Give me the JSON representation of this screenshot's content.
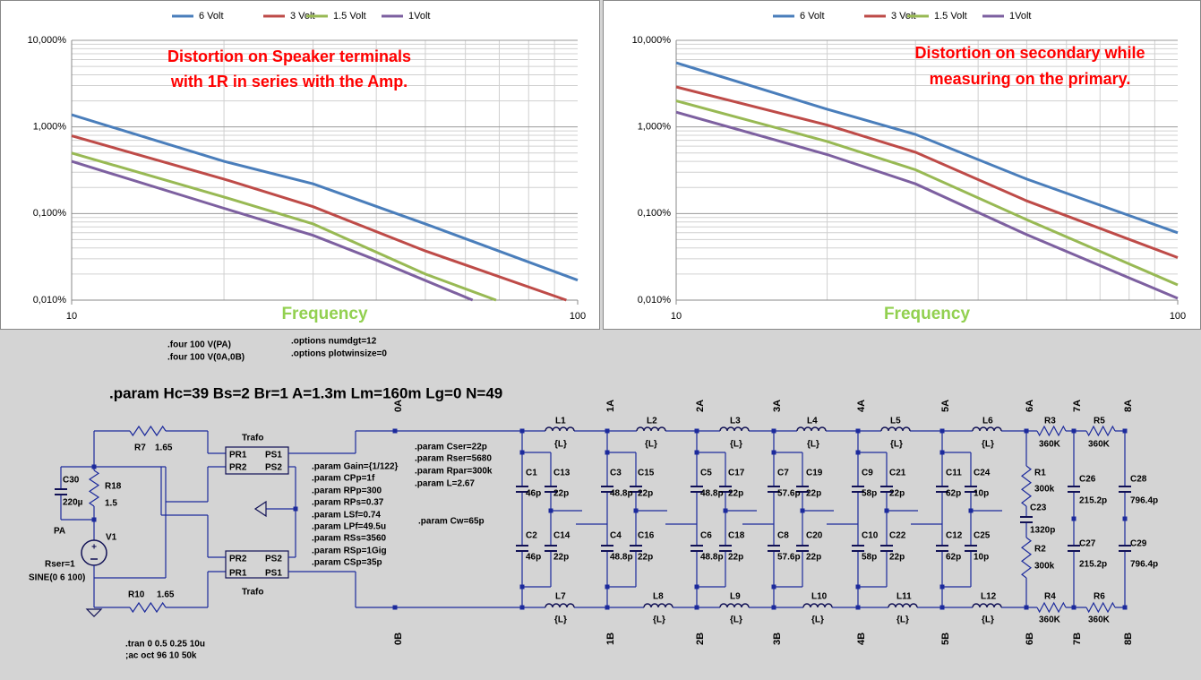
{
  "chart_data": [
    {
      "type": "line",
      "x_log": true,
      "y_log": true,
      "grid": true,
      "minor_grid": true,
      "legend": "top",
      "annotation": [
        "Distortion on Speaker terminals",
        "with 1R in series with the Amp."
      ],
      "xlabel": "Frequency",
      "xlim": [
        10,
        100
      ],
      "xticks": [
        10,
        100
      ],
      "ylim": [
        0.01,
        10
      ],
      "yticks": [
        {
          "value": 0.01,
          "label": "0,010%"
        },
        {
          "value": 0.1,
          "label": "0,100%"
        },
        {
          "value": 1,
          "label": "1,000%"
        },
        {
          "value": 10,
          "label": "10,000%"
        }
      ],
      "series": [
        {
          "name": "6 Volt",
          "color": "#4a7ebb",
          "x": [
            10,
            20,
            30,
            50,
            100
          ],
          "values": [
            1.38,
            0.4,
            0.22,
            0.076,
            0.017
          ]
        },
        {
          "name": "3 Volt",
          "color": "#be4b48",
          "x": [
            10,
            20,
            30,
            50,
            95
          ],
          "values": [
            0.79,
            0.25,
            0.12,
            0.037,
            0.01
          ]
        },
        {
          "name": "1.5 Volt",
          "color": "#98b954",
          "x": [
            10,
            20,
            30,
            50,
            69
          ],
          "values": [
            0.5,
            0.155,
            0.076,
            0.02,
            0.01
          ]
        },
        {
          "name": "1Volt",
          "color": "#7d60a0",
          "x": [
            10,
            20,
            30,
            40,
            62
          ],
          "values": [
            0.4,
            0.115,
            0.056,
            0.029,
            0.01
          ]
        }
      ]
    },
    {
      "type": "line",
      "x_log": true,
      "y_log": true,
      "grid": true,
      "minor_grid": true,
      "legend": "top",
      "annotation": [
        "Distortion on secondary  while",
        "measuring on the primary."
      ],
      "xlabel": "Frequency",
      "xlim": [
        10,
        100
      ],
      "xticks": [
        10,
        100
      ],
      "ylim": [
        0.01,
        10
      ],
      "yticks": [
        {
          "value": 0.01,
          "label": "0,010%"
        },
        {
          "value": 0.1,
          "label": "0,100%"
        },
        {
          "value": 1,
          "label": "1,000%"
        },
        {
          "value": 10,
          "label": "10,000%"
        }
      ],
      "series": [
        {
          "name": "6 Volt",
          "color": "#4a7ebb",
          "x": [
            10,
            20,
            30,
            50,
            100
          ],
          "values": [
            5.5,
            1.6,
            0.82,
            0.25,
            0.06
          ]
        },
        {
          "name": "3 Volt",
          "color": "#be4b48",
          "x": [
            10,
            20,
            30,
            50,
            100
          ],
          "values": [
            2.9,
            1.05,
            0.51,
            0.14,
            0.031
          ]
        },
        {
          "name": "1.5 Volt",
          "color": "#98b954",
          "x": [
            10,
            20,
            30,
            50,
            100
          ],
          "values": [
            2.0,
            0.68,
            0.32,
            0.085,
            0.015
          ]
        },
        {
          "name": "1Volt",
          "color": "#7d60a0",
          "x": [
            10,
            20,
            30,
            50,
            100
          ],
          "values": [
            1.48,
            0.48,
            0.22,
            0.057,
            0.0105
          ]
        }
      ]
    }
  ],
  "schematic": {
    "title": ".param Hc=39 Bs=2 Br=1 A=1.3m Lm=160m Lg=0 N=49",
    "directives": [
      ".four 100 V(PA)",
      ".four 100 V(0A,0B)",
      ".options numdgt=12",
      ".options plotwinsize=0",
      ".param Gain={1/122}",
      ".param CPp=1f",
      ".param RPp=300",
      ".param RPs=0.37",
      ".param LSf=0.74",
      ".param LPf=49.5u",
      ".param RSs=3560",
      ".param RSp=1Gig",
      ".param CSp=35p",
      ".param Cser=22p",
      ".param Rser=5680",
      ".param Rpar=300k",
      ".param L=2.67",
      ".param Cw=65p",
      ".tran 0 0.5 0.25 10u",
      ";ac oct 96 10 50k"
    ],
    "labels": [
      "R7",
      "1.65",
      "C30",
      "220µ",
      "R18",
      "1.5",
      "PA",
      "V1",
      "Rser=1",
      "SINE(0 6 100)",
      "R10",
      "1.65",
      "Trafo",
      "PR1",
      "PS1",
      "PR2",
      "PS2",
      "PR2",
      "PS2",
      "PR1",
      "PS1",
      "Trafo",
      "L1",
      "{L}",
      "L2",
      "{L}",
      "L3",
      "{L}",
      "L4",
      "{L}",
      "L5",
      "{L}",
      "L6",
      "{L}",
      "L7",
      "{L}",
      "L8",
      "{L}",
      "L9",
      "{L}",
      "L10",
      "{L}",
      "L11",
      "{L}",
      "L12",
      "{L}",
      "R3",
      "360K",
      "R5",
      "360K",
      "R4",
      "360K",
      "R6",
      "360K",
      "C1",
      "46p",
      "C13",
      "22p",
      "C3",
      "48.8p",
      "C15",
      "22p",
      "C5",
      "48.8p",
      "C17",
      "22p",
      "C7",
      "57.6p",
      "C19",
      "22p",
      "C9",
      "58p",
      "C21",
      "22p",
      "C11",
      "62p",
      "C24",
      "10p",
      "C2",
      "46p",
      "C14",
      "22p",
      "C4",
      "48.8p",
      "C16",
      "22p",
      "C6",
      "48.8p",
      "C18",
      "22p",
      "C8",
      "57.6p",
      "C20",
      "22p",
      "C10",
      "58p",
      "C22",
      "22p",
      "C12",
      "62p",
      "C25",
      "10p",
      "R1",
      "300k",
      "C23",
      "1320p",
      "R2",
      "300k",
      "C26",
      "215.2p",
      "C27",
      "215.2p",
      "C28",
      "796.4p",
      "C29",
      "796.4p"
    ],
    "nets": [
      "0A",
      "1A",
      "2A",
      "3A",
      "4A",
      "5A",
      "6A",
      "7A",
      "8A",
      "0B",
      "1B",
      "2B",
      "3B",
      "4B",
      "5B",
      "6B",
      "7B",
      "8B"
    ]
  }
}
